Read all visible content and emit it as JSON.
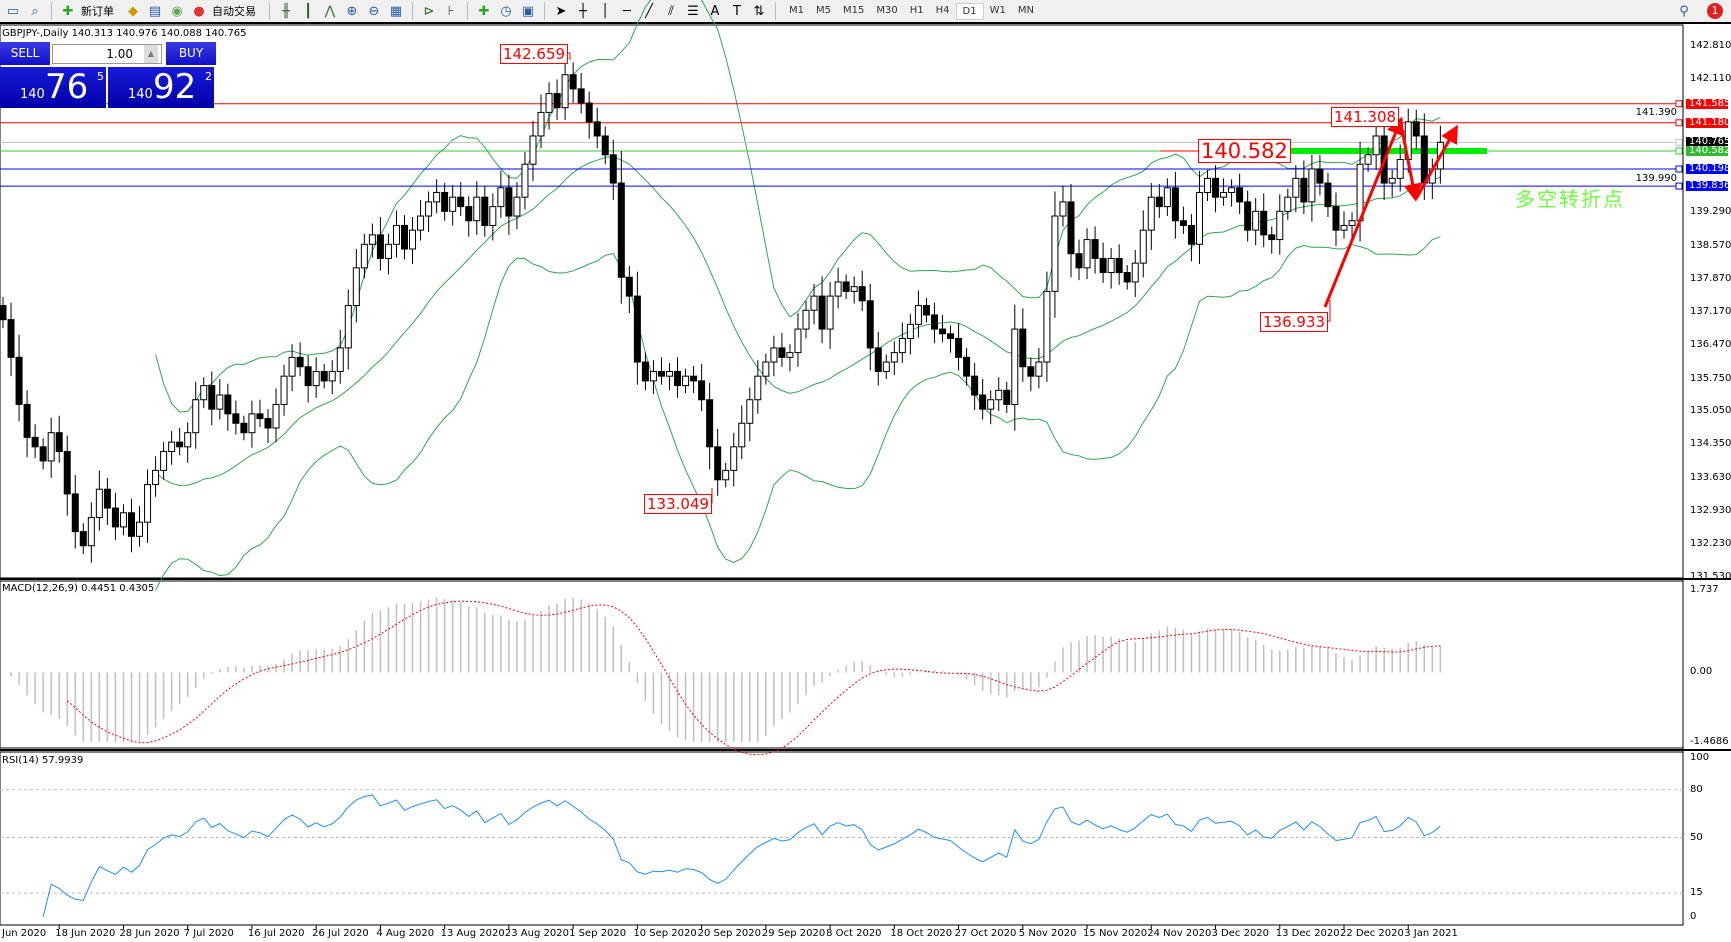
{
  "toolbar": {
    "new_order": "新订单",
    "auto_trading": "自动交易",
    "timeframes": [
      "M1",
      "M5",
      "M15",
      "M30",
      "H1",
      "H4",
      "D1",
      "W1",
      "MN"
    ],
    "active_timeframe": "D1",
    "notification_count": "1"
  },
  "chart": {
    "symbol_info": "GBPJPY-,Daily  140.313 140.976 140.088 140.765"
  },
  "trade_panel": {
    "sell_label": "SELL",
    "buy_label": "BUY",
    "lots": "1.00",
    "bid": {
      "big": "140",
      "main": "76",
      "sup": "5"
    },
    "ask": {
      "big": "140",
      "main": "92",
      "sup": "2"
    }
  },
  "price_axis": {
    "ticks": [
      "142.810",
      "142.110",
      "141.390",
      "139.990",
      "139.290",
      "138.570",
      "137.870",
      "137.170",
      "136.470",
      "135.750",
      "135.050",
      "134.350",
      "133.630",
      "132.930",
      "132.230",
      "131.530"
    ],
    "tags": [
      {
        "value": "141.585",
        "color": "#ff0000"
      },
      {
        "value": "141.180",
        "color": "#ff0000"
      },
      {
        "value": "140.765",
        "color": "#000000"
      },
      {
        "value": "140.582",
        "color": "#33bb33"
      },
      {
        "value": "140.198",
        "color": "#0000ff"
      },
      {
        "value": "139.836",
        "color": "#0000ff"
      }
    ]
  },
  "hlines": [
    {
      "price": 141.585,
      "color": "#ff0000"
    },
    {
      "price": 141.18,
      "color": "#ff0000"
    },
    {
      "price": 140.765,
      "color": "#c0c0c0"
    },
    {
      "price": 140.582,
      "color": "#33cc33"
    },
    {
      "price": 140.198,
      "color": "#0000ff"
    },
    {
      "price": 139.836,
      "color": "#0000ff"
    }
  ],
  "annotations": {
    "labels": [
      "142.659",
      "133.049",
      "140.582",
      "141.308",
      "136.933"
    ],
    "note": "多空转折点",
    "arrow_color": "#ff0000",
    "zone_color": "#00ee00"
  },
  "macd": {
    "label": "MACD(12,26,9) 0.4451 0.4305",
    "axis": [
      "1.737",
      "0.00",
      "-1.4686"
    ],
    "axis_values": [
      1.737,
      0,
      -1.4686
    ]
  },
  "rsi": {
    "label": "RSI(14) 57.9939",
    "axis": [
      "100",
      "80",
      "50",
      "15",
      "0"
    ],
    "axis_values": [
      100,
      80,
      50,
      15,
      0
    ],
    "levels": [
      80,
      50,
      15
    ]
  },
  "time_axis": [
    "Jun 2020",
    "18 Jun 2020",
    "28 Jun 2020",
    "7 Jul 2020",
    "16 Jul 2020",
    "26 Jul 2020",
    "4 Aug 2020",
    "13 Aug 2020",
    "23 Aug 2020",
    "1 Sep 2020",
    "10 Sep 2020",
    "20 Sep 2020",
    "29 Sep 2020",
    "8 Oct 2020",
    "18 Oct 2020",
    "27 Oct 2020",
    "5 Nov 2020",
    "15 Nov 2020",
    "24 Nov 2020",
    "3 Dec 2020",
    "13 Dec 2020",
    "22 Dec 2020",
    "3 Jan 2021"
  ],
  "chart_data": {
    "type": "candlestick",
    "symbol": "GBPJPY-",
    "timeframe": "Daily",
    "ylim": [
      131.53,
      143.23
    ],
    "indicators": [
      "Bollinger Bands",
      "MACD(12,26,9)",
      "RSI(14)"
    ],
    "first_open": 137.3,
    "closes": [
      137.0,
      136.2,
      135.2,
      134.5,
      134.3,
      134.0,
      134.6,
      134.2,
      133.3,
      132.5,
      132.2,
      132.8,
      133.4,
      133.0,
      132.6,
      132.9,
      132.4,
      132.7,
      133.5,
      133.8,
      134.2,
      134.4,
      134.3,
      134.6,
      135.3,
      135.6,
      135.1,
      135.4,
      135.0,
      134.8,
      134.6,
      135.0,
      134.9,
      134.7,
      135.2,
      135.8,
      136.2,
      136.0,
      135.6,
      135.9,
      135.7,
      135.9,
      136.4,
      137.3,
      138.1,
      138.6,
      138.8,
      138.3,
      138.6,
      139.0,
      138.5,
      138.9,
      139.2,
      139.5,
      139.7,
      139.3,
      139.6,
      139.4,
      139.1,
      139.6,
      139.0,
      139.4,
      139.8,
      139.2,
      139.6,
      140.3,
      140.9,
      141.4,
      141.8,
      141.5,
      142.2,
      141.9,
      141.6,
      141.2,
      140.9,
      140.5,
      139.9,
      137.9,
      137.5,
      136.1,
      135.7,
      135.9,
      135.8,
      135.9,
      135.6,
      135.8,
      135.7,
      135.3,
      134.3,
      133.6,
      133.8,
      134.3,
      134.8,
      135.3,
      135.8,
      136.1,
      136.4,
      136.2,
      136.3,
      136.8,
      137.2,
      137.5,
      136.8,
      137.5,
      137.8,
      137.6,
      137.7,
      137.4,
      136.4,
      135.9,
      136.1,
      136.3,
      136.6,
      136.9,
      137.3,
      137.1,
      136.8,
      136.7,
      136.6,
      136.2,
      135.8,
      135.4,
      135.1,
      135.3,
      135.5,
      135.2,
      136.8,
      136.0,
      135.8,
      136.1,
      137.6,
      139.2,
      139.5,
      138.4,
      138.1,
      138.7,
      138.3,
      138.0,
      138.3,
      138.0,
      137.8,
      138.2,
      138.9,
      139.6,
      139.4,
      139.8,
      139.1,
      139.0,
      138.6,
      139.7,
      140.0,
      139.6,
      139.7,
      139.8,
      139.5,
      138.9,
      139.3,
      138.8,
      138.7,
      139.3,
      139.6,
      140.0,
      139.5,
      140.2,
      139.9,
      139.4,
      138.9,
      139.0,
      139.1,
      140.3,
      140.5,
      140.9,
      139.9,
      140.0,
      140.4,
      141.2,
      140.9,
      139.9,
      140.2,
      140.765
    ]
  }
}
